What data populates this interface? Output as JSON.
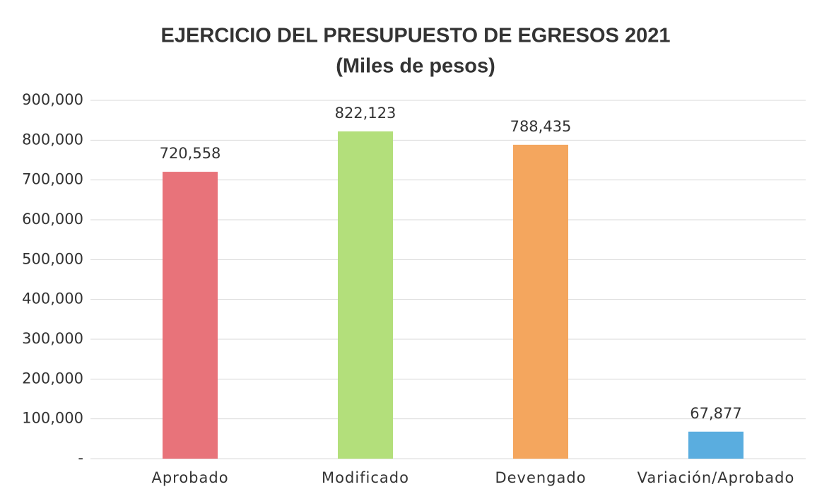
{
  "chart_data": {
    "type": "bar",
    "title": "EJERCICIO DEL PRESUPUESTO DE EGRESOS 2021",
    "subtitle": "(Miles de pesos)",
    "categories": [
      "Aprobado",
      "Modificado",
      "Devengado",
      "Variación/Aprobado"
    ],
    "values": [
      720558,
      822123,
      788435,
      67877
    ],
    "value_labels": [
      "720,558",
      "822,123",
      "788,435",
      "67,877"
    ],
    "colors": [
      "#e8737a",
      "#b3df7b",
      "#f4a65e",
      "#5aaddf"
    ],
    "ylim": [
      0,
      900000
    ],
    "yticks": [
      {
        "value": 0,
        "label": "-"
      },
      {
        "value": 100000,
        "label": "100,000"
      },
      {
        "value": 200000,
        "label": "200,000"
      },
      {
        "value": 300000,
        "label": "300,000"
      },
      {
        "value": 400000,
        "label": "400,000"
      },
      {
        "value": 500000,
        "label": "500,000"
      },
      {
        "value": 600000,
        "label": "600,000"
      },
      {
        "value": 700000,
        "label": "700,000"
      },
      {
        "value": 800000,
        "label": "800,000"
      },
      {
        "value": 900000,
        "label": "900,000"
      }
    ],
    "grid": true
  }
}
